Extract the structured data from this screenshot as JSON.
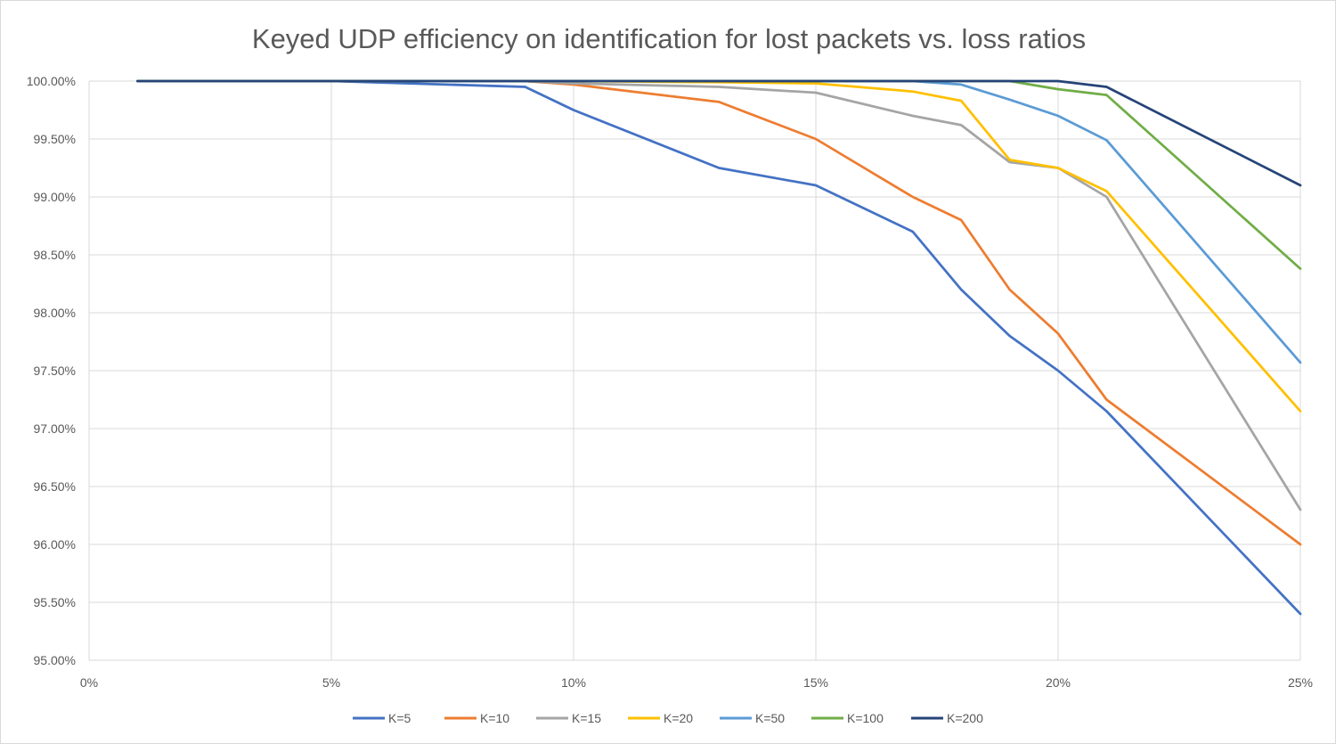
{
  "chart_data": {
    "type": "line",
    "title": "Keyed UDP efficiency on identification for lost packets vs. loss ratios",
    "xlabel": "",
    "ylabel": "",
    "xlim": [
      0,
      25
    ],
    "ylim": [
      95,
      100
    ],
    "x_ticks": [
      0,
      5,
      10,
      15,
      20,
      25
    ],
    "x_tick_labels": [
      "0%",
      "5%",
      "10%",
      "15%",
      "20%",
      "25%"
    ],
    "y_ticks": [
      95,
      95.5,
      96,
      96.5,
      97,
      97.5,
      98,
      98.5,
      99,
      99.5,
      100
    ],
    "y_tick_labels": [
      "95.00%",
      "95.50%",
      "96.00%",
      "96.50%",
      "97.00%",
      "97.50%",
      "98.00%",
      "98.50%",
      "99.00%",
      "99.50%",
      "100.00%"
    ],
    "grid": true,
    "legend_position": "bottom",
    "series": [
      {
        "name": "K=5",
        "color": "#4472C4",
        "points": [
          [
            1,
            100
          ],
          [
            5,
            100
          ],
          [
            9,
            99.95
          ],
          [
            10,
            99.75
          ],
          [
            13,
            99.25
          ],
          [
            15,
            99.1
          ],
          [
            17,
            98.7
          ],
          [
            18,
            98.2
          ],
          [
            19,
            97.8
          ],
          [
            20,
            97.5
          ],
          [
            21,
            97.15
          ],
          [
            25,
            95.4
          ]
        ]
      },
      {
        "name": "K=10",
        "color": "#ED7D31",
        "points": [
          [
            1,
            100
          ],
          [
            5,
            100
          ],
          [
            9,
            100
          ],
          [
            10,
            99.97
          ],
          [
            13,
            99.82
          ],
          [
            15,
            99.5
          ],
          [
            17,
            99.0
          ],
          [
            18,
            98.8
          ],
          [
            19,
            98.2
          ],
          [
            20,
            97.82
          ],
          [
            21,
            97.25
          ],
          [
            25,
            96.0
          ]
        ]
      },
      {
        "name": "K=15",
        "color": "#A5A5A5",
        "points": [
          [
            1,
            100
          ],
          [
            5,
            100
          ],
          [
            9,
            100
          ],
          [
            10,
            99.98
          ],
          [
            13,
            99.95
          ],
          [
            15,
            99.9
          ],
          [
            17,
            99.7
          ],
          [
            18,
            99.62
          ],
          [
            19,
            99.3
          ],
          [
            20,
            99.25
          ],
          [
            21,
            99.0
          ],
          [
            25,
            96.3
          ]
        ]
      },
      {
        "name": "K=20",
        "color": "#FFC000",
        "points": [
          [
            1,
            100
          ],
          [
            5,
            100
          ],
          [
            9,
            100
          ],
          [
            10,
            100
          ],
          [
            13,
            99.99
          ],
          [
            15,
            99.98
          ],
          [
            17,
            99.91
          ],
          [
            18,
            99.83
          ],
          [
            19,
            99.32
          ],
          [
            20,
            99.25
          ],
          [
            21,
            99.05
          ],
          [
            25,
            97.15
          ]
        ]
      },
      {
        "name": "K=50",
        "color": "#5B9BD5",
        "points": [
          [
            1,
            100
          ],
          [
            5,
            100
          ],
          [
            9,
            100
          ],
          [
            10,
            100
          ],
          [
            13,
            100
          ],
          [
            15,
            100
          ],
          [
            17,
            100
          ],
          [
            18,
            99.97
          ],
          [
            19,
            99.84
          ],
          [
            20,
            99.7
          ],
          [
            21,
            99.49
          ],
          [
            25,
            97.57
          ]
        ]
      },
      {
        "name": "K=100",
        "color": "#70AD47",
        "points": [
          [
            1,
            100
          ],
          [
            5,
            100
          ],
          [
            9,
            100
          ],
          [
            10,
            100
          ],
          [
            13,
            100
          ],
          [
            15,
            100
          ],
          [
            17,
            100
          ],
          [
            18,
            100
          ],
          [
            19,
            100
          ],
          [
            20,
            99.93
          ],
          [
            21,
            99.88
          ],
          [
            25,
            98.38
          ]
        ]
      },
      {
        "name": "K=200",
        "color": "#264478",
        "points": [
          [
            1,
            100
          ],
          [
            5,
            100
          ],
          [
            9,
            100
          ],
          [
            10,
            100
          ],
          [
            13,
            100
          ],
          [
            15,
            100
          ],
          [
            17,
            100
          ],
          [
            18,
            100
          ],
          [
            19,
            100
          ],
          [
            20,
            100
          ],
          [
            21,
            99.95
          ],
          [
            25,
            99.1
          ]
        ]
      }
    ]
  }
}
